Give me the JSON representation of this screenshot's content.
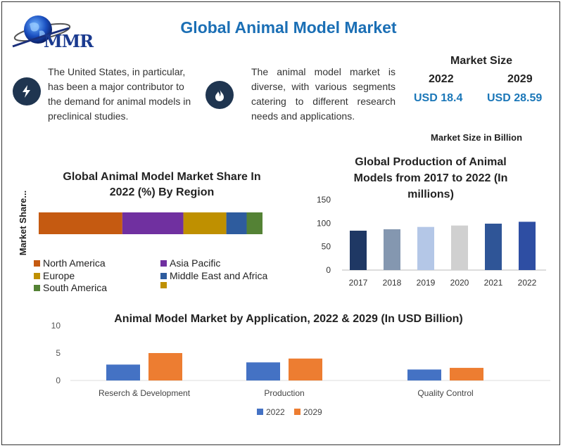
{
  "header": {
    "logo_text": "MMR",
    "title": "Global Animal Model Market"
  },
  "highlights": [
    {
      "icon": "lightning-icon",
      "text": "The United States, in particular, has been a major contributor to the demand for animal models in preclinical studies."
    },
    {
      "icon": "flame-icon",
      "text": "The animal model market is diverse, with various segments catering to different research needs and applications."
    }
  ],
  "market_size": {
    "heading": "Market Size",
    "years": [
      "2022",
      "2029"
    ],
    "values": [
      "USD 18.4",
      "USD 28.59"
    ],
    "note": "Market Size in Billion"
  },
  "colors": {
    "title_blue": "#1b6fb5",
    "north_america": "#c55a11",
    "asia_pacific": "#7030a0",
    "europe": "#bf9000",
    "middle_east_africa": "#2e5c9e",
    "south_america": "#548235",
    "series_2022": "#4472c4",
    "series_2029": "#ed7d31"
  },
  "chart_data": [
    {
      "type": "bar",
      "orientation": "horizontal-stacked",
      "title": "Global Animal Model Market Share In 2022 (%) By Region",
      "ylabel": "Market Share...",
      "series": [
        {
          "name": "North America",
          "value": 37
        },
        {
          "name": "Asia Pacific",
          "value": 27
        },
        {
          "name": "Europe",
          "value": 19
        },
        {
          "name": "Middle East and Africa",
          "value": 9
        },
        {
          "name": "South America",
          "value": 7
        }
      ],
      "extra_legend_entry": "",
      "legend_position": "bottom"
    },
    {
      "type": "bar",
      "title": "Global Production of Animal Models from 2017 to 2022 (In millions)",
      "categories": [
        "2017",
        "2018",
        "2019",
        "2020",
        "2021",
        "2022"
      ],
      "values": [
        84,
        87,
        92,
        95,
        99,
        103
      ],
      "bar_colors": [
        "#1f3864",
        "#8497b0",
        "#b4c7e7",
        "#d0d0d0",
        "#2f5597",
        "#2e4ea3"
      ],
      "yticks": [
        "0",
        "50",
        "100",
        "150"
      ],
      "ylim": [
        0,
        150
      ],
      "grid": false
    },
    {
      "type": "bar",
      "title": "Animal Model Market by Application, 2022 & 2029 (In USD Billion)",
      "categories": [
        "Reserch & Development",
        "Production",
        "Quality Control"
      ],
      "series": [
        {
          "name": "2022",
          "values": [
            2.9,
            3.3,
            2.0
          ]
        },
        {
          "name": "2029",
          "values": [
            5.0,
            4.0,
            2.3
          ]
        }
      ],
      "yticks": [
        "0",
        "5",
        "10"
      ],
      "ylim": [
        0,
        10
      ],
      "legend_position": "bottom",
      "grid": false
    }
  ]
}
